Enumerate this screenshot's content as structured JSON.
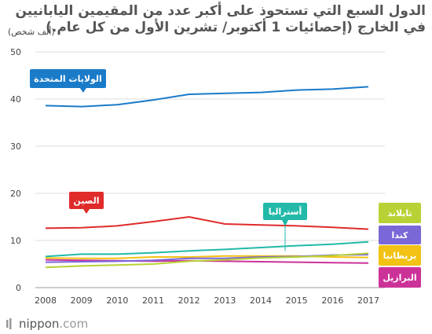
{
  "header": {
    "title_line1": "الدول السبع التي تستحوذ على أكبر عدد من المقيمين اليابانيين",
    "title_line2": "في الخارج (إحصائيات 1 أكتوبر/ تشرين الأول من كل عام.)",
    "unit": "(ألف شخص)"
  },
  "footer": {
    "brand": "nippon",
    "brand_suffix": ".com"
  },
  "chart_data": {
    "type": "line",
    "title": "الدول السبع التي تستحوذ على أكبر عدد من المقيمين اليابانيين في الخارج (إحصائيات 1 أكتوبر/ تشرين الأول من كل عام.)",
    "ylabel": "(ألف شخص)",
    "xlabel": "",
    "ylim": [
      0,
      50
    ],
    "yticks": [
      0,
      10,
      20,
      30,
      40,
      50
    ],
    "x": [
      "2008",
      "2009",
      "2010",
      "2011",
      "2012",
      "2013",
      "2014",
      "2015",
      "2016",
      "2017"
    ],
    "grid": true,
    "series": [
      {
        "name": "الولايات المتحدة",
        "color": "#1a7bc9",
        "values": [
          38.6,
          38.4,
          38.8,
          39.8,
          41.0,
          41.2,
          41.4,
          41.9,
          42.1,
          42.6
        ]
      },
      {
        "name": "الصين",
        "color": "#e02b2b",
        "values": [
          12.6,
          12.7,
          13.1,
          14.0,
          15.0,
          13.5,
          13.3,
          13.1,
          12.8,
          12.4
        ]
      },
      {
        "name": "أستراليا",
        "color": "#22b9a8",
        "values": [
          6.6,
          7.1,
          7.1,
          7.4,
          7.8,
          8.1,
          8.5,
          8.9,
          9.2,
          9.7
        ]
      },
      {
        "name": "تايلاند",
        "color": "#b8d236",
        "values": [
          4.3,
          4.6,
          4.8,
          5.0,
          5.6,
          5.9,
          6.3,
          6.5,
          6.8,
          7.3
        ]
      },
      {
        "name": "كندا",
        "color": "#7a67d8",
        "values": [
          5.4,
          5.5,
          5.6,
          5.8,
          6.2,
          6.2,
          6.5,
          6.6,
          6.9,
          7.0
        ]
      },
      {
        "name": "بريطانيا",
        "color": "#f2c214",
        "values": [
          6.3,
          6.2,
          6.2,
          6.5,
          6.5,
          6.7,
          6.7,
          6.7,
          6.5,
          6.4
        ]
      },
      {
        "name": "البرازيل",
        "color": "#cc3399",
        "values": [
          5.9,
          5.8,
          5.7,
          5.6,
          5.7,
          5.6,
          5.5,
          5.4,
          5.3,
          5.2
        ]
      }
    ]
  }
}
